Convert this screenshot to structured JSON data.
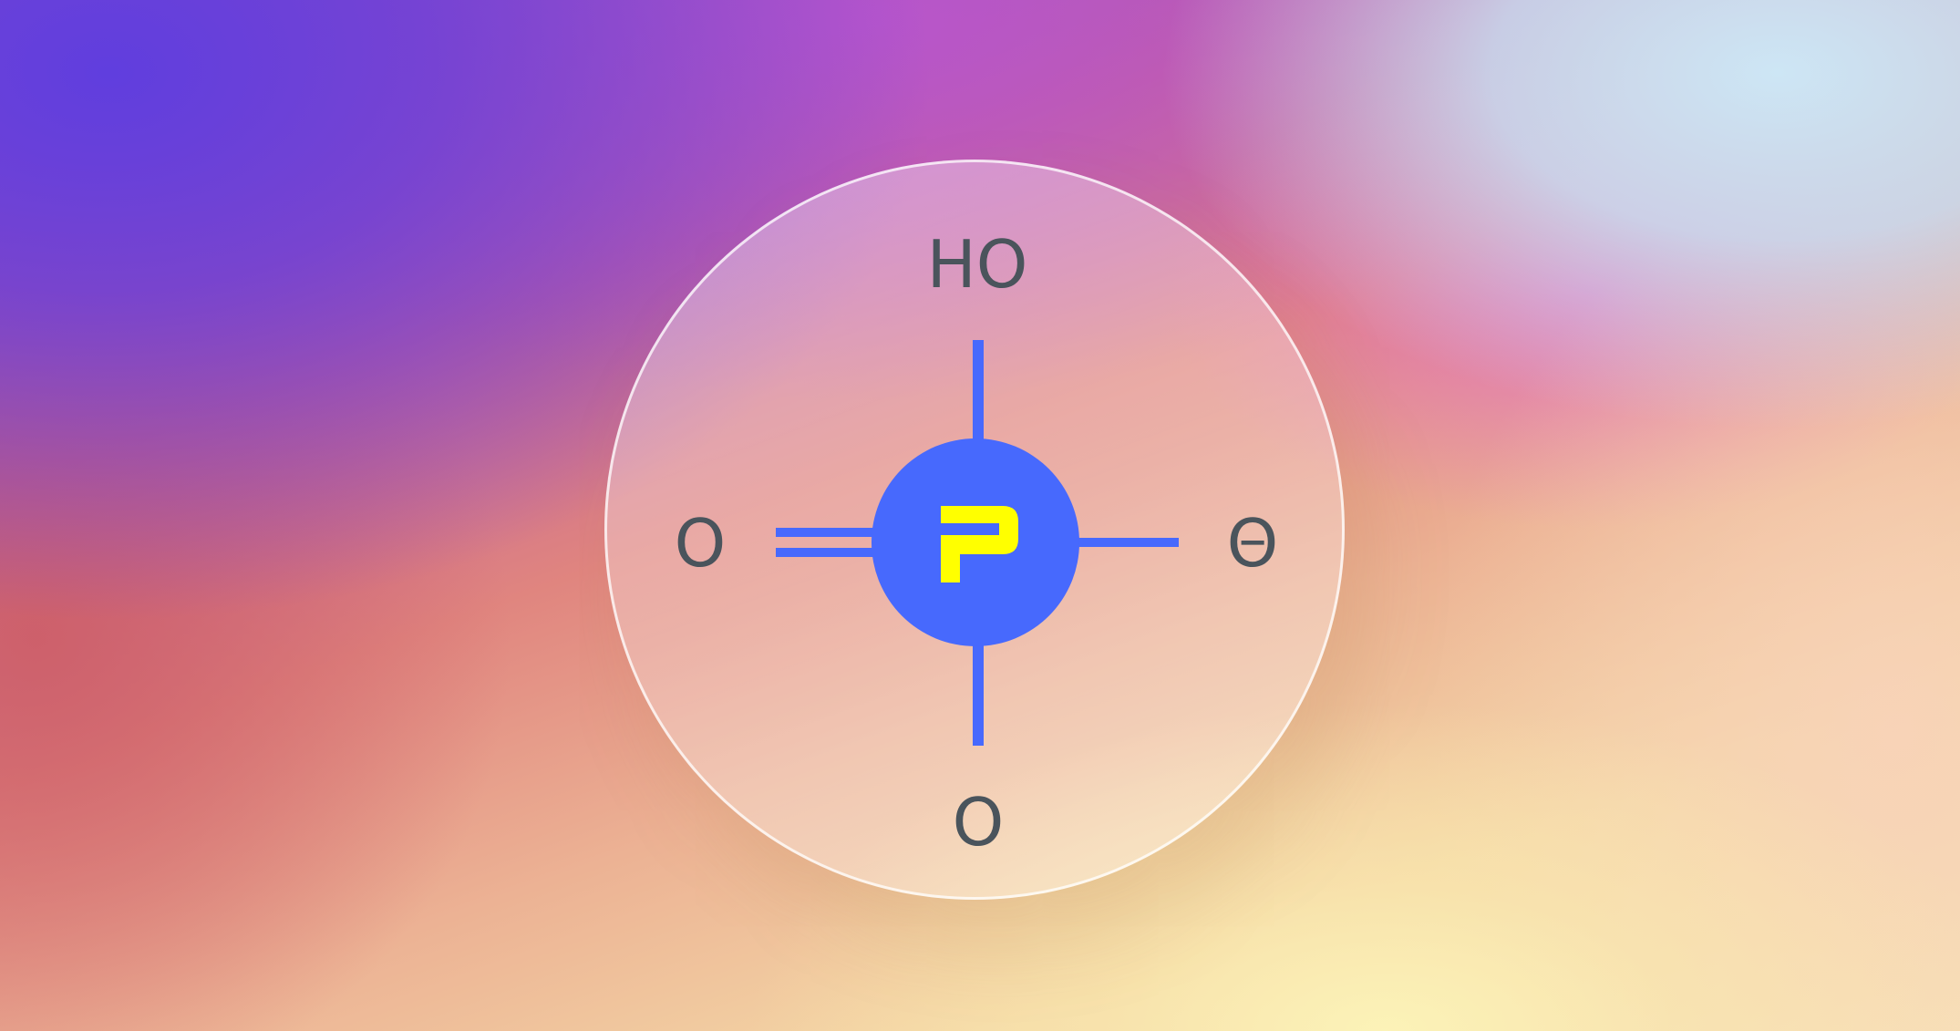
{
  "diagram": {
    "center_atom": {
      "symbol_icon": "phosphorus-p-logo-icon",
      "color": "#4769fd",
      "symbol_color": "#ffff00"
    },
    "atoms": {
      "top": "HO",
      "left": "O",
      "right": "O",
      "bottom": "O"
    },
    "bonds": {
      "top": "single",
      "left": "double",
      "right": "single",
      "bottom": "single"
    },
    "right_charge": "−",
    "bond_color": "#4769fd",
    "label_color": "#4a545c"
  }
}
